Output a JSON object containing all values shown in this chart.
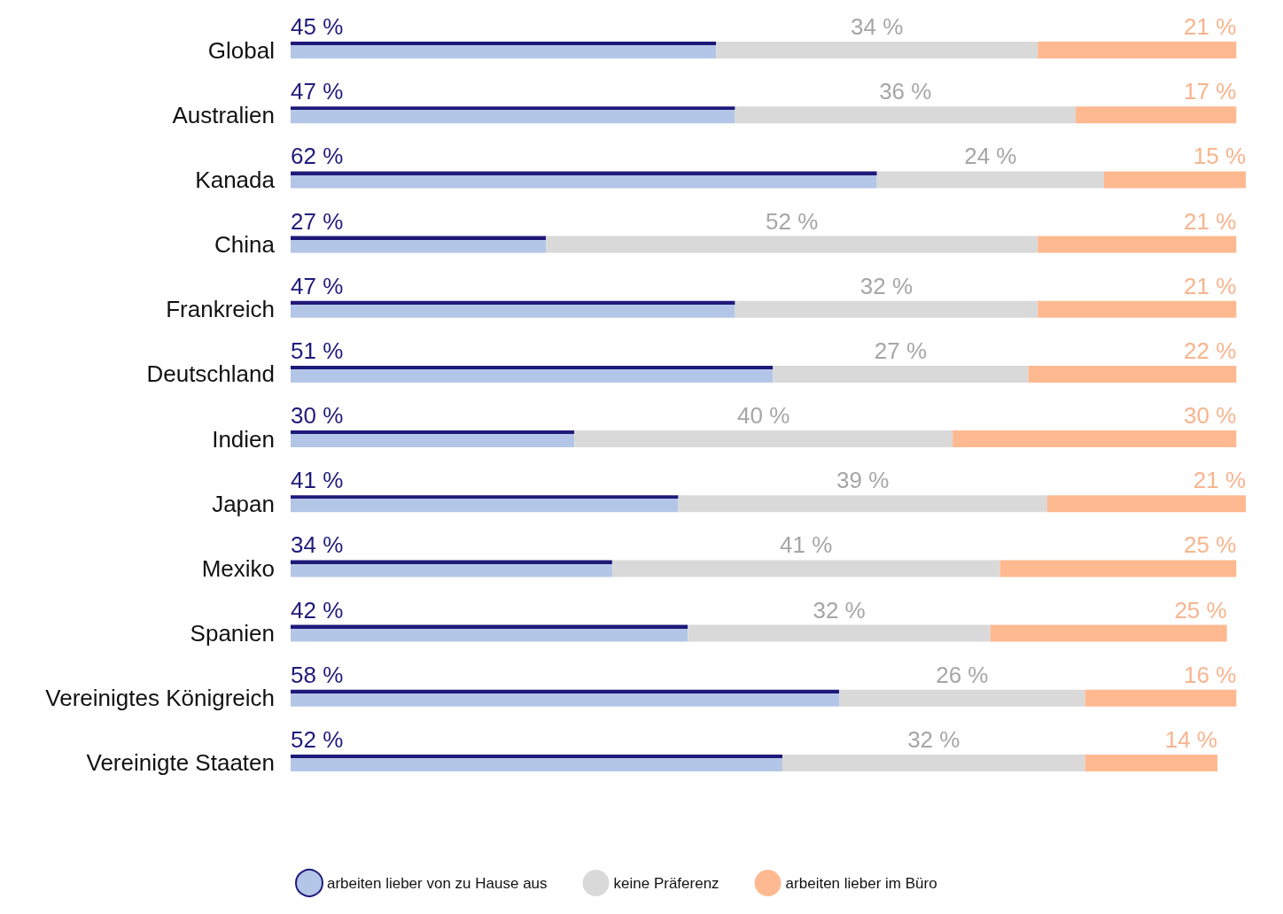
{
  "chart_data": {
    "type": "bar",
    "orientation": "horizontal",
    "stacked": true,
    "legend": "bottom",
    "tick_labels": "y",
    "categories": [
      "Global",
      "Australien",
      "Kanada",
      "China",
      "Frankreich",
      "Deutschland",
      "Indien",
      "Japan",
      "Mexiko",
      "Spanien",
      "Vereinigtes Königreich",
      "Vereinigte Staaten"
    ],
    "series": [
      {
        "name": "arbeiten lieber von zu Hause aus",
        "color": "#b4c6e7",
        "values": [
          45,
          47,
          62,
          27,
          47,
          51,
          30,
          41,
          34,
          42,
          58,
          52
        ],
        "value_labels": [
          "45 %",
          "47 %",
          "62 %",
          "27 %",
          "47 %",
          "51 %",
          "30 %",
          "41 %",
          "34 %",
          "42 %",
          "58 %",
          "52 %"
        ]
      },
      {
        "name": "keine Präferenz",
        "color": "#d9d9d9",
        "values": [
          34,
          36,
          24,
          52,
          32,
          27,
          40,
          39,
          41,
          32,
          26,
          32
        ],
        "value_labels": [
          "34 %",
          "36 %",
          "24 %",
          "52 %",
          "32 %",
          "27 %",
          "40 %",
          "39 %",
          "41 %",
          "32 %",
          "26 %",
          "32 %"
        ]
      },
      {
        "name": "arbeiten lieber im Büro",
        "color": "#ffb990",
        "values": [
          21,
          17,
          15,
          21,
          21,
          22,
          30,
          21,
          25,
          25,
          16,
          14
        ],
        "value_labels": [
          "21 %",
          "17 %",
          "15 %",
          "21 %",
          "21 %",
          "22 %",
          "30 %",
          "21 %",
          "25 %",
          "25 %",
          "16 %",
          "14 %"
        ]
      }
    ]
  }
}
